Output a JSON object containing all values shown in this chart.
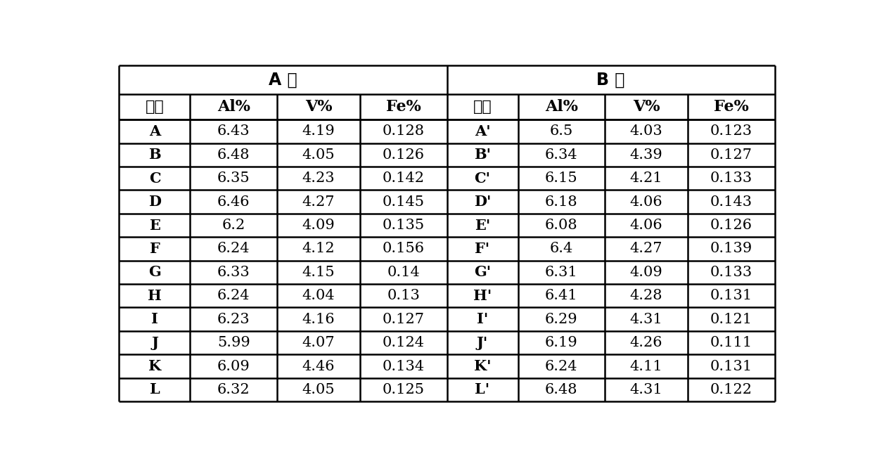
{
  "title_A": "A 面",
  "title_B": "B 面",
  "col_headers": [
    "编号",
    "Al%",
    "V%",
    "Fe%",
    "编号",
    "Al%",
    "V%",
    "Fe%"
  ],
  "rows": [
    [
      "A",
      "6.43",
      "4.19",
      "0.128",
      "A'",
      "6.5",
      "4.03",
      "0.123"
    ],
    [
      "B",
      "6.48",
      "4.05",
      "0.126",
      "B'",
      "6.34",
      "4.39",
      "0.127"
    ],
    [
      "C",
      "6.35",
      "4.23",
      "0.142",
      "C'",
      "6.15",
      "4.21",
      "0.133"
    ],
    [
      "D",
      "6.46",
      "4.27",
      "0.145",
      "D'",
      "6.18",
      "4.06",
      "0.143"
    ],
    [
      "E",
      "6.2",
      "4.09",
      "0.135",
      "E'",
      "6.08",
      "4.06",
      "0.126"
    ],
    [
      "F",
      "6.24",
      "4.12",
      "0.156",
      "F'",
      "6.4",
      "4.27",
      "0.139"
    ],
    [
      "G",
      "6.33",
      "4.15",
      "0.14",
      "G'",
      "6.31",
      "4.09",
      "0.133"
    ],
    [
      "H",
      "6.24",
      "4.04",
      "0.13",
      "H'",
      "6.41",
      "4.28",
      "0.131"
    ],
    [
      "I",
      "6.23",
      "4.16",
      "0.127",
      "I'",
      "6.29",
      "4.31",
      "0.121"
    ],
    [
      "J",
      "5.99",
      "4.07",
      "0.124",
      "J'",
      "6.19",
      "4.26",
      "0.111"
    ],
    [
      "K",
      "6.09",
      "4.46",
      "0.134",
      "K'",
      "6.24",
      "4.11",
      "0.131"
    ],
    [
      "L",
      "6.32",
      "4.05",
      "0.125",
      "L'",
      "6.48",
      "4.31",
      "0.122"
    ]
  ],
  "bold_col_indices_data": [
    0,
    4
  ],
  "background_color": "#ffffff",
  "line_color": "#000000"
}
